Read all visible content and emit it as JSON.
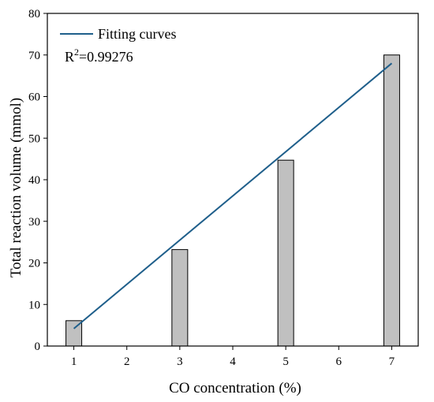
{
  "chart_data": {
    "type": "bar",
    "x": [
      1,
      3,
      5,
      7
    ],
    "values": [
      6.1,
      23.2,
      44.7,
      70.0
    ],
    "xlabel": "CO concentration (%)",
    "ylabel": "Total reaction volume (mmol)",
    "xlim": [
      0.5,
      7.5
    ],
    "ylim": [
      0,
      80
    ],
    "xticks": [
      "1",
      "2",
      "3",
      "4",
      "5",
      "6",
      "7"
    ],
    "yticks": [
      "0",
      "10",
      "20",
      "30",
      "40",
      "50",
      "60",
      "70",
      "80"
    ],
    "bar_color": "#c0c0c0",
    "fit": {
      "name": "Fitting curves",
      "x": [
        1,
        7
      ],
      "y": [
        4.2,
        68.0
      ],
      "color": "#1f5f8b",
      "r2_prefix": "R",
      "r2_sup": "2",
      "r2_value": "=0.99276"
    },
    "legend_position": "top-left",
    "grid": false
  }
}
